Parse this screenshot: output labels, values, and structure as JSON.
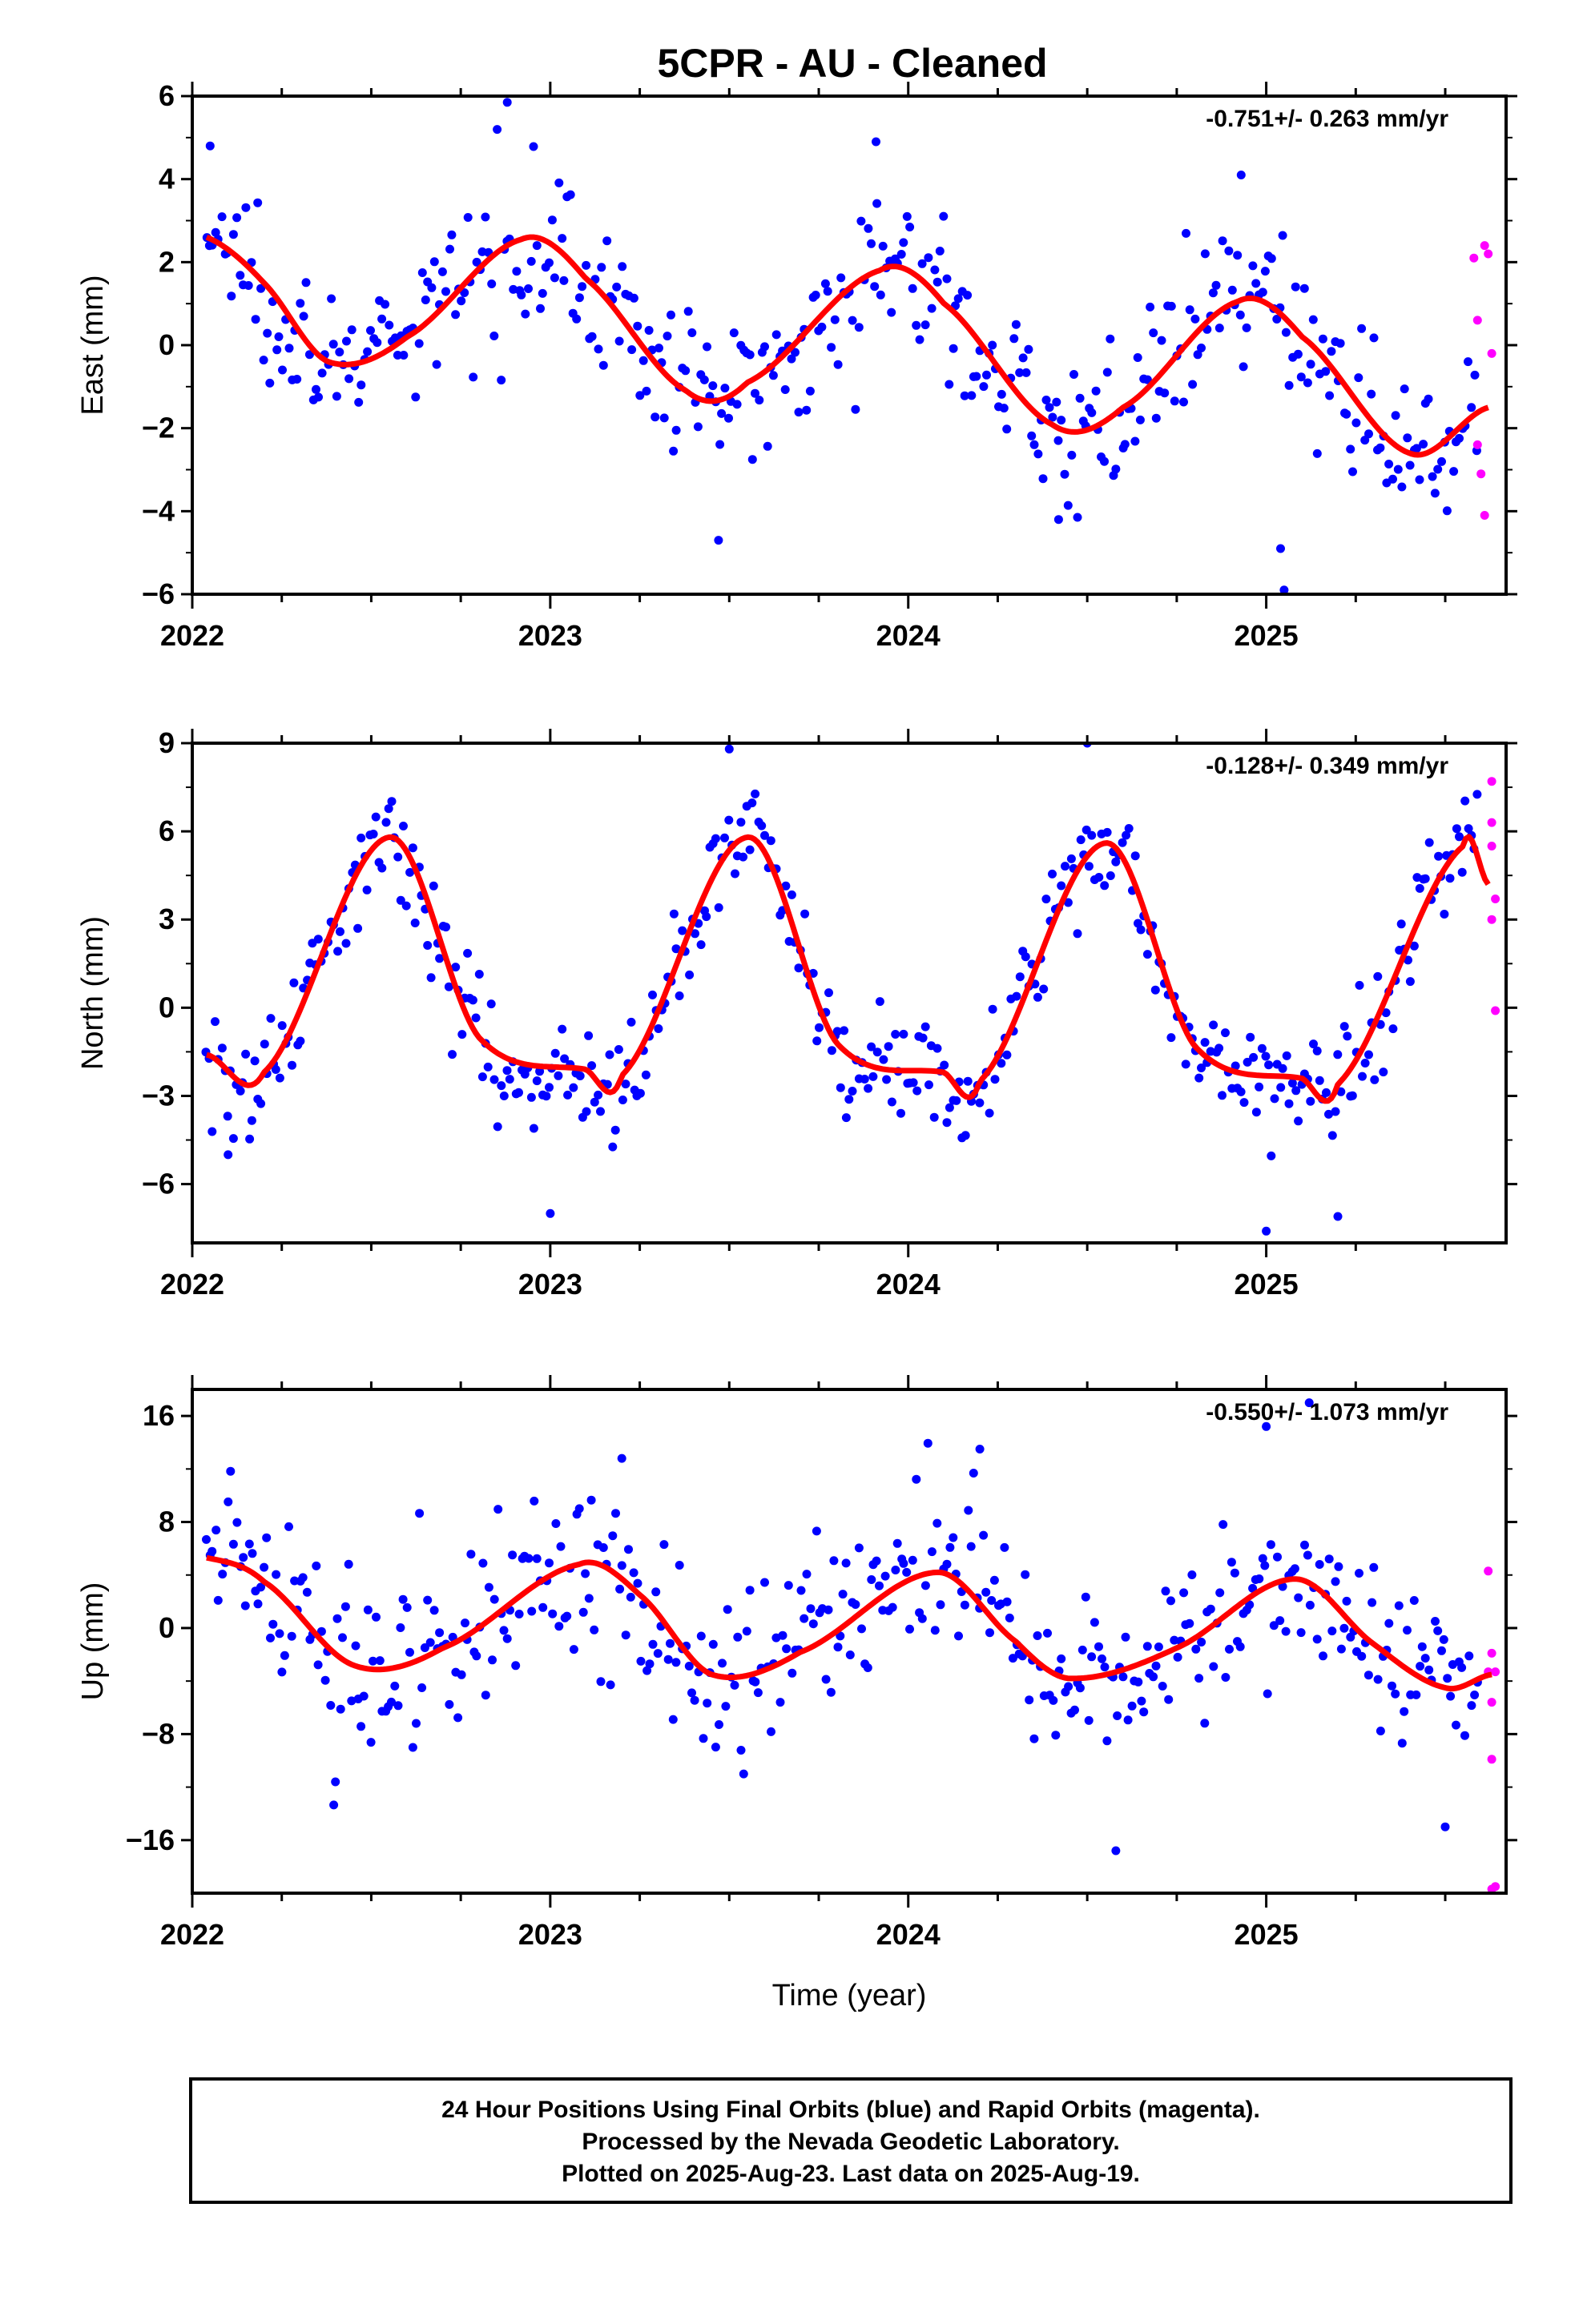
{
  "title": "5CPR  - AU - Cleaned",
  "colors": {
    "final": "#0000ff",
    "rapid": "#ff00ff",
    "model": "#ff0000",
    "frame": "#000000"
  },
  "footer": {
    "line1": "24 Hour Positions Using Final Orbits (blue) and Rapid Orbits (magenta).",
    "line2": "Processed by the Nevada Geodetic Laboratory.",
    "line3": "Plotted on 2025-Aug-23. Last data on 2025-Aug-19."
  },
  "chart_data": [
    {
      "type": "scatter",
      "ylabel": "East (mm)",
      "xlabel": "",
      "rate": "-0.751+/- 0.263 mm/yr",
      "xlim": [
        2022.0,
        2025.67
      ],
      "ylim": [
        -6,
        6
      ],
      "xticks": [
        2022,
        2023,
        2024,
        2025
      ],
      "yticks": [
        -6,
        -4,
        -2,
        0,
        2,
        4,
        6
      ],
      "model": {
        "name": "",
        "offset": 0.3,
        "trend": -0.751,
        "annual": [
          0.9,
          1.5
        ],
        "semiannual": [
          0.0,
          0.0
        ],
        "samples": [
          [
            2022.04,
            2.6
          ],
          [
            2022.2,
            1.5
          ],
          [
            2022.38,
            -0.4
          ],
          [
            2022.6,
            0.2
          ],
          [
            2022.92,
            2.55
          ],
          [
            2023.1,
            1.6
          ],
          [
            2023.38,
            -1.1
          ],
          [
            2023.55,
            -0.9
          ],
          [
            2023.92,
            1.8
          ],
          [
            2024.1,
            1.0
          ],
          [
            2024.4,
            -1.9
          ],
          [
            2024.6,
            -1.5
          ],
          [
            2024.92,
            1.05
          ],
          [
            2025.1,
            0.2
          ],
          [
            2025.4,
            -2.6
          ],
          [
            2025.62,
            -1.5
          ]
        ]
      },
      "series": [
        {
          "name": "",
          "kind": "final",
          "x_range": [
            2022.04,
            2025.59
          ],
          "noise": 0.9,
          "count": 420,
          "outliers": [
            [
              2022.05,
              4.8
            ],
            [
              2022.88,
              5.85
            ],
            [
              2023.47,
              -4.7
            ],
            [
              2023.91,
              4.9
            ],
            [
              2024.93,
              4.1
            ],
            [
              2025.04,
              -4.9
            ],
            [
              2025.05,
              -5.9
            ],
            [
              2024.42,
              -4.2
            ]
          ]
        },
        {
          "name": "",
          "kind": "rapid",
          "x": [
            2025.58,
            2025.59,
            2025.59,
            2025.6,
            2025.61,
            2025.61,
            2025.63,
            2025.62
          ],
          "y": [
            2.1,
            0.6,
            -2.4,
            -3.1,
            -4.1,
            2.4,
            -0.2,
            2.2
          ]
        }
      ]
    },
    {
      "type": "scatter",
      "ylabel": "North (mm)",
      "xlabel": "",
      "rate": "-0.128+/- 0.349 mm/yr",
      "xlim": [
        2022.0,
        2025.67
      ],
      "ylim": [
        -8,
        9
      ],
      "xticks": [
        2022,
        2023,
        2024,
        2025
      ],
      "yticks": [
        -6,
        -3,
        0,
        3,
        6,
        9
      ],
      "model": {
        "name": "",
        "offset": 0.9,
        "trend": -0.128,
        "annual": [
          -3.3,
          -1.2
        ],
        "semiannual": [
          -2.2,
          -1.1
        ],
        "samples": [
          [
            2022.04,
            -1.6
          ],
          [
            2022.2,
            -2.2
          ],
          [
            2022.55,
            5.8
          ],
          [
            2022.8,
            -1.0
          ],
          [
            2023.1,
            -2.1
          ],
          [
            2023.2,
            -2.3
          ],
          [
            2023.55,
            5.8
          ],
          [
            2023.8,
            -1.2
          ],
          [
            2024.1,
            -2.2
          ],
          [
            2024.2,
            -2.5
          ],
          [
            2024.55,
            5.6
          ],
          [
            2024.8,
            -1.3
          ],
          [
            2025.1,
            -2.4
          ],
          [
            2025.2,
            -2.6
          ],
          [
            2025.55,
            5.5
          ],
          [
            2025.62,
            4.2
          ]
        ]
      },
      "series": [
        {
          "name": "",
          "kind": "final",
          "x_range": [
            2022.04,
            2025.59
          ],
          "noise": 0.95,
          "count": 420,
          "outliers": [
            [
              2023.0,
              -7.0
            ],
            [
              2023.5,
              8.8
            ],
            [
              2024.5,
              9.0
            ],
            [
              2025.0,
              -7.6
            ],
            [
              2025.2,
              -7.1
            ],
            [
              2022.1,
              -5.0
            ]
          ]
        },
        {
          "name": "",
          "kind": "rapid",
          "x": [
            2025.63,
            2025.63,
            2025.63,
            2025.63,
            2025.64,
            2025.64
          ],
          "y": [
            7.7,
            6.3,
            5.5,
            3.0,
            -0.1,
            3.7
          ]
        }
      ]
    },
    {
      "type": "scatter",
      "ylabel": "Up (mm)",
      "xlabel": "Time (year)",
      "rate": "-0.550+/- 1.073 mm/yr",
      "xlim": [
        2022.0,
        2025.67
      ],
      "ylim": [
        -20,
        18
      ],
      "xticks": [
        2022,
        2023,
        2024,
        2025
      ],
      "yticks": [
        -16,
        -8,
        0,
        8,
        16
      ],
      "model": {
        "name": "",
        "offset": 1.0,
        "trend": -0.55,
        "annual": [
          3.6,
          2.6
        ],
        "semiannual": [
          0.0,
          0.0
        ],
        "samples": [
          [
            2022.04,
            5.3
          ],
          [
            2022.2,
            3.5
          ],
          [
            2022.45,
            -2.8
          ],
          [
            2022.7,
            -1.5
          ],
          [
            2023.08,
            4.8
          ],
          [
            2023.25,
            2.5
          ],
          [
            2023.45,
            -3.5
          ],
          [
            2023.7,
            -1.8
          ],
          [
            2024.08,
            4.2
          ],
          [
            2024.3,
            -1.0
          ],
          [
            2024.45,
            -3.8
          ],
          [
            2024.75,
            -1.5
          ],
          [
            2025.08,
            3.7
          ],
          [
            2025.3,
            -1.2
          ],
          [
            2025.5,
            -4.5
          ],
          [
            2025.63,
            -3.5
          ]
        ]
      },
      "series": [
        {
          "name": "",
          "kind": "final",
          "x_range": [
            2022.04,
            2025.59
          ],
          "noise": 3.2,
          "count": 420,
          "outliers": [
            [
              2024.58,
              -16.8
            ],
            [
              2025.12,
              17.0
            ],
            [
              2025.0,
              15.2
            ],
            [
              2025.5,
              -15.0
            ],
            [
              2022.4,
              -11.6
            ],
            [
              2023.2,
              12.8
            ],
            [
              2024.2,
              13.5
            ]
          ]
        },
        {
          "name": "",
          "kind": "rapid",
          "x": [
            2025.62,
            2025.63,
            2025.63,
            2025.63,
            2025.63,
            2025.64,
            2025.62,
            2025.64
          ],
          "y": [
            4.3,
            -1.9,
            -5.6,
            -9.9,
            -19.7,
            -19.5,
            -3.3,
            -3.3
          ]
        }
      ]
    }
  ]
}
